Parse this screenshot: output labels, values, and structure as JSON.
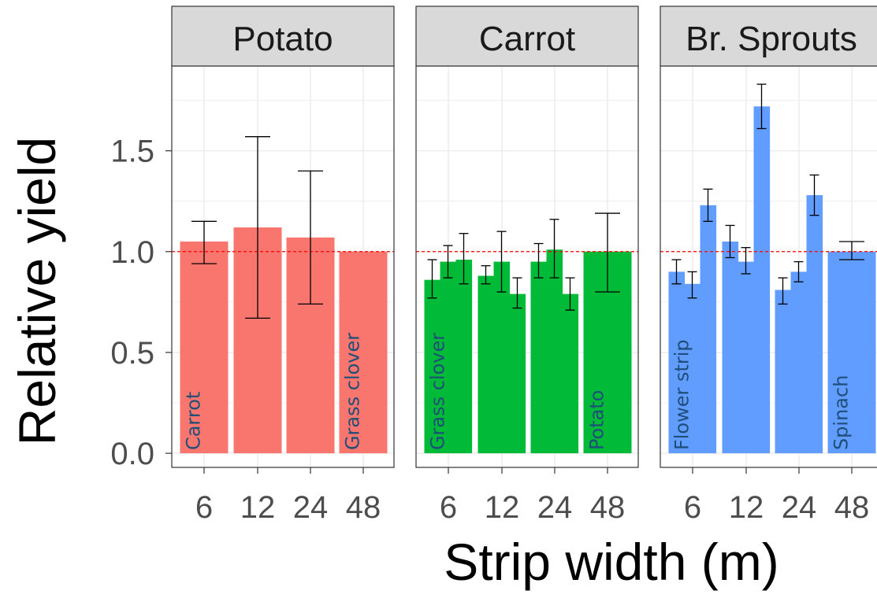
{
  "chart_data": {
    "type": "bar",
    "xlabel": "Strip width (m)",
    "ylabel": "Relative yield",
    "ylim": [
      -0.07,
      1.92
    ],
    "y_ticks": [
      "0.0",
      "0.5",
      "1.0",
      "1.5"
    ],
    "y_tick_values": [
      0,
      0.5,
      1.0,
      1.5
    ],
    "x_ticks": [
      "6",
      "12",
      "24",
      "48"
    ],
    "reference_line": 1.0,
    "grid": true,
    "panels": [
      {
        "name": "Potato",
        "color": "#F8766D",
        "bars": [
          {
            "width": "6",
            "value": 1.05,
            "err_low": 0.94,
            "err_high": 1.15
          },
          {
            "width": "12",
            "value": 1.12,
            "err_low": 0.67,
            "err_high": 1.57
          },
          {
            "width": "24",
            "value": 1.07,
            "err_low": 0.74,
            "err_high": 1.4
          },
          {
            "width": "48",
            "value": 1.0
          }
        ],
        "labels": [
          {
            "text": "Carrot",
            "at": "6"
          },
          {
            "text": "Grass clover",
            "at": "48"
          }
        ]
      },
      {
        "name": "Carrot",
        "color": "#00BA38",
        "bars": [
          {
            "width": "6",
            "sub": 0,
            "value": 0.86,
            "err_low": 0.77,
            "err_high": 0.96
          },
          {
            "width": "6",
            "sub": 1,
            "value": 0.95,
            "err_low": 0.87,
            "err_high": 1.03
          },
          {
            "width": "6",
            "sub": 2,
            "value": 0.96,
            "err_low": 0.84,
            "err_high": 1.09
          },
          {
            "width": "12",
            "sub": 0,
            "value": 0.88,
            "err_low": 0.84,
            "err_high": 0.93
          },
          {
            "width": "12",
            "sub": 1,
            "value": 0.95,
            "err_low": 0.8,
            "err_high": 1.1
          },
          {
            "width": "12",
            "sub": 2,
            "value": 0.79,
            "err_low": 0.72,
            "err_high": 0.87
          },
          {
            "width": "24",
            "sub": 0,
            "value": 0.95,
            "err_low": 0.87,
            "err_high": 1.04
          },
          {
            "width": "24",
            "sub": 1,
            "value": 1.01,
            "err_low": 0.87,
            "err_high": 1.16
          },
          {
            "width": "24",
            "sub": 2,
            "value": 0.79,
            "err_low": 0.71,
            "err_high": 0.87
          },
          {
            "width": "48",
            "value": 1.0,
            "err_low": 0.8,
            "err_high": 1.19
          }
        ],
        "labels": [
          {
            "text": "Grass clover",
            "at": "6"
          },
          {
            "text": "Potato",
            "at": "48"
          }
        ]
      },
      {
        "name": "Br. Sprouts",
        "color": "#619CFF",
        "bars": [
          {
            "width": "6",
            "sub": 0,
            "value": 0.9,
            "err_low": 0.84,
            "err_high": 0.96
          },
          {
            "width": "6",
            "sub": 1,
            "value": 0.84,
            "err_low": 0.77,
            "err_high": 0.9
          },
          {
            "width": "6",
            "sub": 2,
            "value": 1.23,
            "err_low": 1.15,
            "err_high": 1.31
          },
          {
            "width": "12",
            "sub": 0,
            "value": 1.05,
            "err_low": 0.97,
            "err_high": 1.13
          },
          {
            "width": "12",
            "sub": 1,
            "value": 0.95,
            "err_low": 0.89,
            "err_high": 1.02
          },
          {
            "width": "12",
            "sub": 2,
            "value": 1.72,
            "err_low": 1.61,
            "err_high": 1.83
          },
          {
            "width": "24",
            "sub": 0,
            "value": 0.81,
            "err_low": 0.74,
            "err_high": 0.87
          },
          {
            "width": "24",
            "sub": 1,
            "value": 0.9,
            "err_low": 0.85,
            "err_high": 0.95
          },
          {
            "width": "24",
            "sub": 2,
            "value": 1.28,
            "err_low": 1.18,
            "err_high": 1.38
          },
          {
            "width": "48",
            "value": 1.0,
            "err_low": 0.96,
            "err_high": 1.05
          }
        ],
        "labels": [
          {
            "text": "Flower strip",
            "at": "6"
          },
          {
            "text": "Spinach",
            "at": "48"
          }
        ]
      }
    ]
  }
}
